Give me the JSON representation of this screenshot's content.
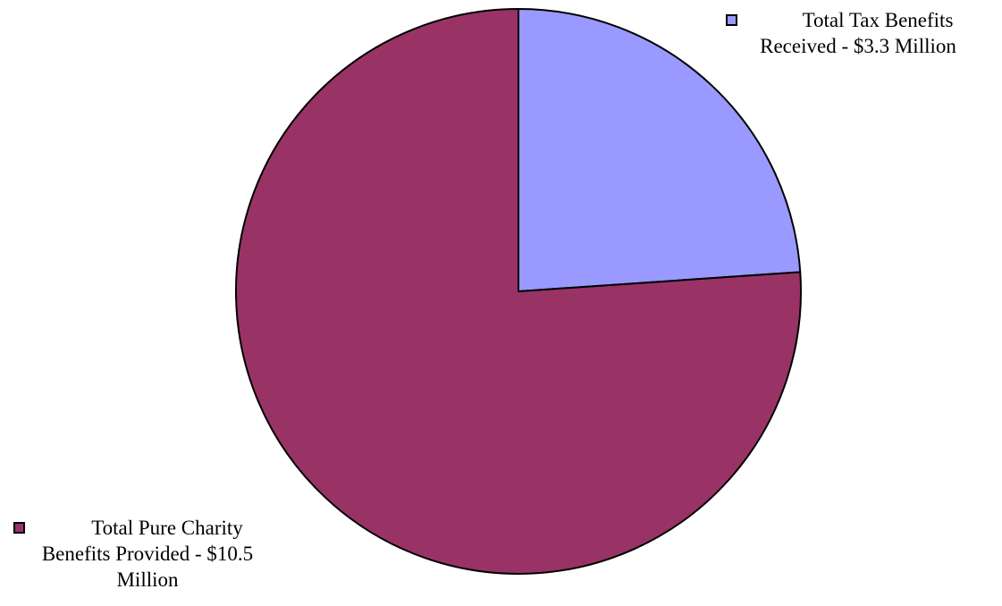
{
  "chart_data": {
    "type": "pie",
    "title": "",
    "slices": [
      {
        "label_lines": [
          "Total Tax Benefits",
          "Received - $3.3 Million"
        ],
        "value": 3.3,
        "color": "#9999FF"
      },
      {
        "label_lines": [
          "Total Pure Charity",
          "Benefits Provided  - $10.5",
          "Million"
        ],
        "value": 10.5,
        "color": "#993366"
      }
    ],
    "start_angle_deg": 0,
    "direction": "clockwise",
    "outline_color": "#000000",
    "legend": "labels beside slices"
  }
}
